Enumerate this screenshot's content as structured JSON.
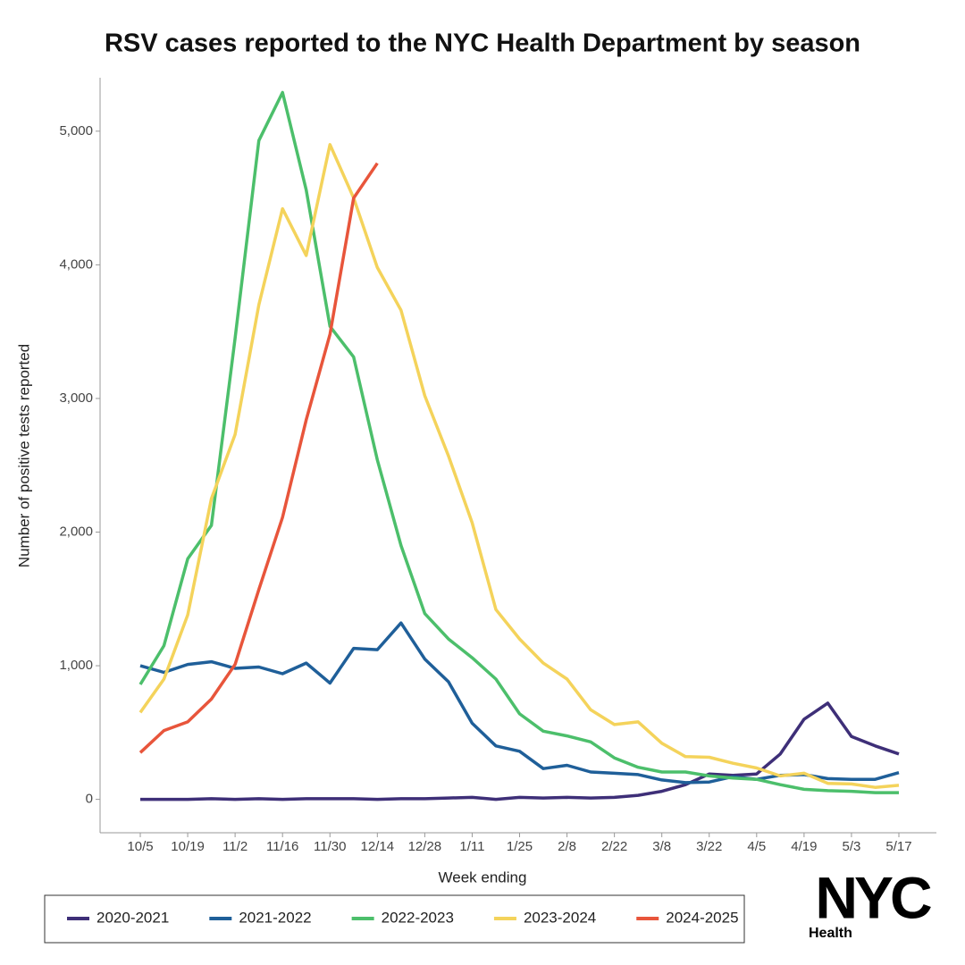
{
  "chart_data": {
    "type": "line",
    "title": "RSV cases reported to the NYC Health Department by season",
    "x_label": "Week ending",
    "y_label": "Number of positive tests reported",
    "categories": [
      "10/5",
      null,
      "10/19",
      null,
      "11/2",
      null,
      "11/16",
      null,
      "11/30",
      null,
      "12/14",
      null,
      "12/28",
      null,
      "1/11",
      null,
      "1/25",
      null,
      "2/8",
      null,
      "2/22",
      null,
      "3/8",
      null,
      "3/22",
      null,
      "4/5",
      null,
      "4/19",
      null,
      "5/3",
      null,
      "5/17"
    ],
    "ylim": [
      -250,
      5400
    ],
    "yticks": [
      0,
      {
        "value": 1000,
        "label": "1,000"
      },
      {
        "value": 2000,
        "label": "2,000"
      },
      {
        "value": 3000,
        "label": "3,000"
      },
      {
        "value": 4000,
        "label": "4,000"
      },
      {
        "value": 5000,
        "label": "5,000"
      }
    ],
    "grid": false,
    "legend": "bottom",
    "series": [
      {
        "name": "2020-2021",
        "color": "#3e2f78",
        "values": [
          0,
          0,
          0,
          5,
          0,
          5,
          0,
          5,
          5,
          5,
          0,
          5,
          5,
          10,
          15,
          0,
          15,
          10,
          15,
          10,
          15,
          30,
          60,
          110,
          190,
          180,
          190,
          340,
          600,
          720,
          470,
          400,
          340
        ]
      },
      {
        "name": "2021-2022",
        "color": "#1f5f99",
        "values": [
          1000,
          950,
          1010,
          1030,
          980,
          990,
          940,
          1020,
          870,
          1130,
          1120,
          1320,
          1050,
          880,
          570,
          400,
          360,
          230,
          255,
          205,
          195,
          185,
          145,
          125,
          130,
          170,
          150,
          180,
          185,
          155,
          150,
          150,
          200
        ]
      },
      {
        "name": "2022-2023",
        "color": "#4cbf6b",
        "values": [
          860,
          1150,
          1800,
          2050,
          3450,
          4930,
          5290,
          4560,
          3540,
          3310,
          2540,
          1900,
          1390,
          1200,
          1060,
          900,
          640,
          510,
          475,
          430,
          310,
          240,
          205,
          205,
          175,
          160,
          150,
          110,
          75,
          65,
          60,
          50,
          50
        ]
      },
      {
        "name": "2023-2024",
        "color": "#f4d35b",
        "values": [
          650,
          900,
          1380,
          2250,
          2730,
          3700,
          4420,
          4070,
          4900,
          4500,
          3980,
          3660,
          3020,
          2570,
          2070,
          1420,
          1200,
          1020,
          900,
          670,
          560,
          580,
          420,
          320,
          315,
          270,
          235,
          175,
          195,
          120,
          115,
          90,
          105
        ]
      },
      {
        "name": "2024-2025",
        "color": "#e8553b",
        "values": [
          350,
          515,
          580,
          750,
          1010,
          1570,
          2110,
          2840,
          3480,
          4500,
          4760,
          null,
          null,
          null,
          null,
          null,
          null,
          null,
          null,
          null,
          null,
          null,
          null,
          null,
          null,
          null,
          null,
          null,
          null,
          null,
          null,
          null,
          null
        ]
      }
    ]
  },
  "logo": {
    "text": "NYC",
    "subtext": "Health"
  }
}
